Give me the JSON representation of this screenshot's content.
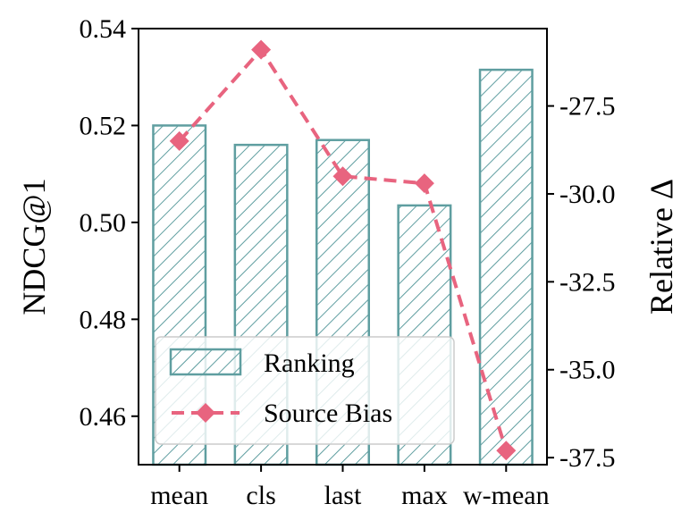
{
  "chart_data": {
    "type": "bar",
    "categories": [
      "mean",
      "cls",
      "last",
      "max",
      "w-mean"
    ],
    "series": [
      {
        "name": "Ranking",
        "kind": "bar",
        "axis": "left",
        "values": [
          0.52,
          0.516,
          0.517,
          0.5035,
          0.5315
        ]
      },
      {
        "name": "Source Bias",
        "kind": "line",
        "axis": "right",
        "values": [
          -28.5,
          -25.9,
          -29.5,
          -29.7,
          -37.3
        ]
      }
    ],
    "ylabel": "NDCG@1",
    "y2label": "Relative Δ",
    "ylim": [
      0.45,
      0.54
    ],
    "y2lim": [
      -37.7,
      -25.3
    ],
    "yticks": [
      "0.46",
      "0.48",
      "0.50",
      "0.52",
      "0.54"
    ],
    "y2ticks": [
      "-27.5",
      "-30.0",
      "-32.5",
      "-35.0",
      "-37.5"
    ],
    "bar_style": "hatched",
    "line_style": "dashed",
    "marker": "diamond",
    "legend_position": "lower-left",
    "grid": false,
    "colors": {
      "bar_edge": "#5f9ea0",
      "line": "#e8647f"
    }
  }
}
